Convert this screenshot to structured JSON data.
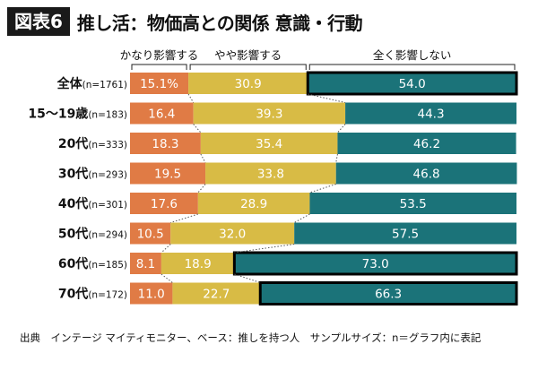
{
  "header": {
    "tag": "図表6",
    "title": "推し活：物価高との関係 意識・行動"
  },
  "footer": {
    "source": "出典　インテージ マイティモニター、ベース：推しを持つ人　サンプルサイズ：n＝グラフ内に表記"
  },
  "chart_data": {
    "type": "bar",
    "stacked": true,
    "orientation": "horizontal",
    "categories": [
      {
        "label": "全体",
        "n": "(n=1761)"
      },
      {
        "label": "15〜19歳",
        "n": "(n=183)"
      },
      {
        "label": "20代",
        "n": "(n=333)"
      },
      {
        "label": "30代",
        "n": "(n=293)"
      },
      {
        "label": "40代",
        "n": "(n=301)"
      },
      {
        "label": "50代",
        "n": "(n=294)"
      },
      {
        "label": "60代",
        "n": "(n=185)"
      },
      {
        "label": "70代",
        "n": "(n=172)"
      }
    ],
    "series": [
      {
        "name": "かなり影響する",
        "color": "#e07b45",
        "values": [
          15.1,
          16.4,
          18.3,
          19.5,
          17.6,
          10.5,
          8.1,
          11.0
        ],
        "labels": [
          "15.1%",
          "16.4",
          "18.3",
          "19.5",
          "17.6",
          "10.5",
          "8.1",
          "11.0"
        ]
      },
      {
        "name": "やや影響する",
        "color": "#d8bb45",
        "values": [
          30.9,
          39.3,
          35.4,
          33.8,
          28.9,
          32.0,
          18.9,
          22.7
        ],
        "labels": [
          "30.9",
          "39.3",
          "35.4",
          "33.8",
          "28.9",
          "32.0",
          "18.9",
          "22.7"
        ]
      },
      {
        "name": "全く影響しない",
        "color": "#1b7379",
        "values": [
          54.0,
          44.3,
          46.2,
          46.8,
          53.5,
          57.5,
          73.0,
          66.3
        ],
        "labels": [
          "54.0",
          "44.3",
          "46.2",
          "46.8",
          "53.5",
          "57.5",
          "73.0",
          "66.3"
        ]
      }
    ],
    "highlighted_bars": [
      {
        "category_index": 0,
        "series_index": 2
      },
      {
        "category_index": 6,
        "series_index": 2
      },
      {
        "category_index": 7,
        "series_index": 2
      }
    ],
    "xlim": [
      0,
      100
    ],
    "legend": "top",
    "grid": false,
    "connector_lines": true
  }
}
